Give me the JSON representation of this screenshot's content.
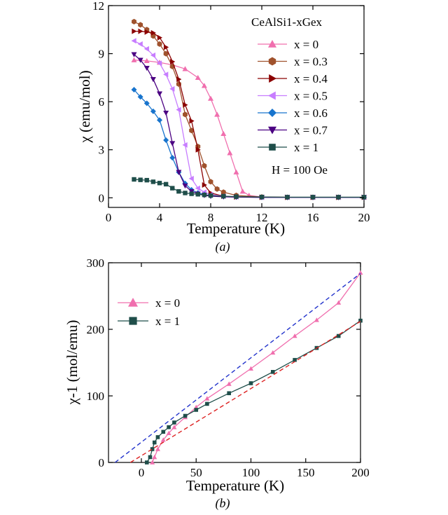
{
  "chart_data": [
    {
      "type": "line",
      "panel_label": "(a)",
      "xlabel": "Temperature (K)",
      "ylabel": "χ (emu/mol)",
      "xlim": [
        0,
        20
      ],
      "ylim": [
        -0.6,
        12
      ],
      "xticks": [
        0,
        4,
        8,
        12,
        16,
        20
      ],
      "yticks": [
        0,
        3,
        6,
        9,
        12
      ],
      "legend_title": "CeAlSi1-xGex",
      "legend_position": "top-right",
      "annotation": "H = 100 Oe",
      "grid": false,
      "series": [
        {
          "name": "x = 0",
          "color": "#f06fae",
          "marker": "triangle-up",
          "x": [
            2,
            3,
            4,
            5,
            6,
            7,
            7.5,
            8,
            8.5,
            9,
            9.5,
            10,
            10.5,
            11,
            12,
            14,
            16,
            18,
            20
          ],
          "y": [
            8.6,
            8.55,
            8.45,
            8.3,
            8.05,
            7.5,
            7.0,
            6.2,
            5.2,
            4.0,
            2.8,
            1.6,
            0.4,
            0.15,
            0.05,
            0.03,
            0.03,
            0.03,
            0.03
          ]
        },
        {
          "name": "x = 0.3",
          "color": "#a0522d",
          "marker": "hexagon",
          "x": [
            2,
            2.5,
            3,
            3.5,
            4,
            4.5,
            5,
            5.5,
            6,
            6.5,
            7,
            7.5,
            8,
            8.5,
            9,
            10,
            12,
            14,
            16,
            18,
            20
          ],
          "y": [
            11.0,
            10.8,
            10.5,
            10.1,
            9.6,
            9.0,
            8.2,
            7.1,
            5.2,
            4.2,
            3.2,
            2.0,
            1.0,
            0.55,
            0.35,
            0.15,
            0.05,
            0.03,
            0.03,
            0.03,
            0.03
          ]
        },
        {
          "name": "x = 0.4",
          "color": "#8b0000",
          "marker": "triangle-right",
          "x": [
            2,
            2.5,
            3,
            3.5,
            4,
            4.5,
            5,
            5.5,
            6,
            6.5,
            7,
            7.5,
            8,
            9,
            10,
            12,
            14,
            16,
            18,
            20
          ],
          "y": [
            10.4,
            10.4,
            10.35,
            10.3,
            10.0,
            9.4,
            8.5,
            7.4,
            5.8,
            4.8,
            3.0,
            0.8,
            0.3,
            0.1,
            0.05,
            0.03,
            0.03,
            0.03,
            0.03,
            0.03
          ]
        },
        {
          "name": "x = 0.5",
          "color": "#c77dff",
          "marker": "triangle-left",
          "x": [
            2,
            2.5,
            3,
            3.5,
            4,
            4.5,
            5,
            5.5,
            6,
            6.5,
            7,
            7.5,
            8,
            9,
            10,
            12,
            14,
            16,
            18,
            20
          ],
          "y": [
            9.8,
            9.6,
            9.3,
            8.9,
            8.4,
            7.7,
            6.8,
            5.5,
            3.3,
            1.2,
            0.6,
            0.35,
            0.2,
            0.1,
            0.05,
            0.03,
            0.03,
            0.03,
            0.03,
            0.03
          ]
        },
        {
          "name": "x = 0.6",
          "color": "#1874cd",
          "marker": "diamond",
          "x": [
            2,
            2.5,
            3,
            3.5,
            4,
            4.5,
            5,
            5.5,
            6,
            6.5,
            7,
            7.5,
            8,
            9,
            10,
            12,
            14,
            16,
            18,
            20
          ],
          "y": [
            6.75,
            6.3,
            5.9,
            5.4,
            4.85,
            3.6,
            2.5,
            1.6,
            0.9,
            0.5,
            0.3,
            0.2,
            0.12,
            0.08,
            0.05,
            0.03,
            0.03,
            0.03,
            0.03,
            0.03
          ]
        },
        {
          "name": "x = 0.7",
          "color": "#4b0082",
          "marker": "triangle-down",
          "x": [
            2,
            2.5,
            3,
            3.5,
            4,
            4.5,
            5,
            5.5,
            6,
            6.5,
            7,
            7.5,
            8,
            9,
            10,
            12,
            14,
            16,
            18,
            20
          ],
          "y": [
            8.95,
            8.6,
            8.1,
            7.4,
            6.5,
            5.3,
            3.4,
            1.6,
            0.75,
            0.4,
            0.25,
            0.15,
            0.1,
            0.06,
            0.04,
            0.03,
            0.03,
            0.03,
            0.03,
            0.03
          ]
        },
        {
          "name": "x = 1",
          "color": "#1f4e4a",
          "marker": "square",
          "x": [
            2,
            2.5,
            3,
            3.5,
            4,
            4.5,
            5,
            5.5,
            6,
            6.5,
            7,
            7.5,
            8,
            9,
            10,
            12,
            14,
            16,
            18,
            20
          ],
          "y": [
            1.15,
            1.12,
            1.1,
            1.0,
            0.92,
            0.85,
            0.6,
            0.4,
            0.3,
            0.25,
            0.22,
            0.18,
            0.14,
            0.1,
            0.07,
            0.05,
            0.04,
            0.04,
            0.04,
            0.04
          ]
        }
      ]
    },
    {
      "type": "line",
      "panel_label": "(b)",
      "xlabel": "Temperature (K)",
      "ylabel": "χ-1 (mol/emu)",
      "xlim": [
        -30,
        200
      ],
      "ylim": [
        0,
        300
      ],
      "xticks": [
        0,
        50,
        100,
        150,
        200
      ],
      "yticks": [
        0,
        100,
        200,
        300
      ],
      "legend_position": "top-left",
      "grid": false,
      "series": [
        {
          "name": "x = 0",
          "color": "#f06fae",
          "marker": "triangle-up",
          "x": [
            10,
            12,
            15,
            20,
            25,
            30,
            40,
            50,
            60,
            80,
            100,
            120,
            140,
            160,
            180,
            200
          ],
          "y": [
            0,
            8,
            20,
            34,
            44,
            53,
            68,
            83,
            96,
            118,
            141,
            165,
            190,
            214,
            240,
            285
          ]
        },
        {
          "name": "x = 1",
          "color": "#1f4e4a",
          "marker": "square",
          "x": [
            5,
            8,
            10,
            12,
            15,
            20,
            25,
            30,
            40,
            50,
            60,
            80,
            100,
            120,
            140,
            160,
            180,
            200
          ],
          "y": [
            0,
            8,
            20,
            30,
            38,
            46,
            53,
            60,
            70,
            79,
            88,
            104,
            119,
            136,
            154,
            172,
            190,
            213
          ]
        },
        {
          "name": "",
          "color": "#2233cc",
          "style": "dashed",
          "x": [
            -24,
            200
          ],
          "y": [
            0,
            284
          ]
        },
        {
          "name": "",
          "color": "#dd2222",
          "style": "dashed",
          "x": [
            -10,
            200
          ],
          "y": [
            0,
            212
          ]
        }
      ]
    }
  ]
}
